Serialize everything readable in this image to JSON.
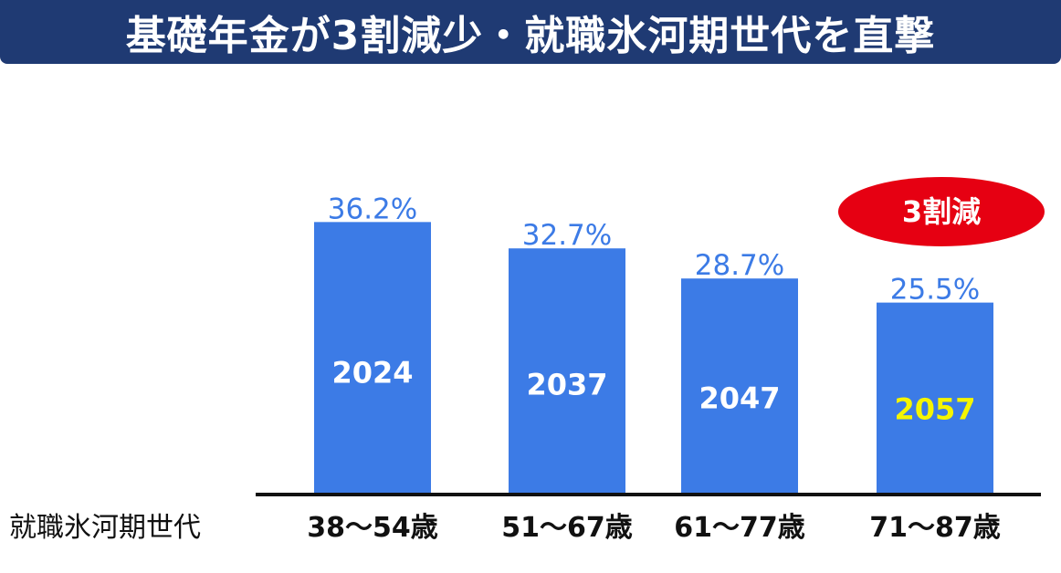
{
  "header": {
    "title": "基礎年金が3割減少・就職氷河期世代を直撃"
  },
  "chart_data": {
    "type": "bar",
    "title": "基礎年金が3割減少・就職氷河期世代を直撃",
    "row_label": "就職氷河期世代",
    "categories": [
      "38〜54歳",
      "51〜67歳",
      "61〜77歳",
      "71〜87歳"
    ],
    "years": [
      "2024",
      "2037",
      "2047",
      "2057"
    ],
    "values": [
      36.2,
      32.7,
      28.7,
      25.5
    ],
    "value_labels": [
      "36.2%",
      "32.7%",
      "28.7%",
      "25.5%"
    ],
    "unit": "%",
    "ylim": [
      0,
      40
    ],
    "grid": false,
    "annotation": {
      "text": "3割減",
      "target_index": 3
    },
    "colors": {
      "bar": "#3c7be6",
      "value_label": "#3c7be6",
      "year_label": "#ffffff",
      "highlight_year_label": "#f5f500",
      "badge": "#e60012",
      "title_bg": "#1f3a73"
    }
  }
}
